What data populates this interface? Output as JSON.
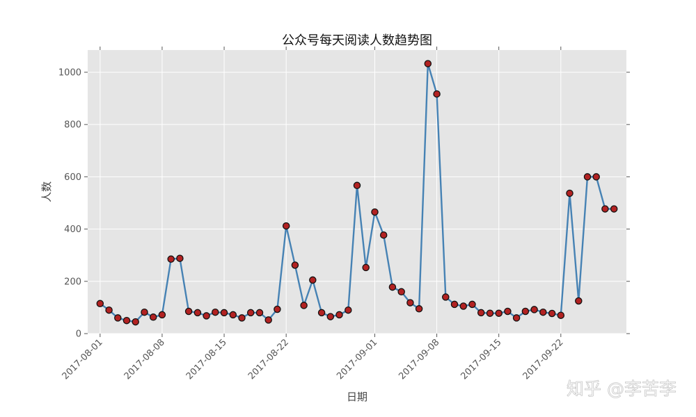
{
  "chart_data": {
    "type": "line",
    "title": "公众号每天阅读人数趋势图",
    "xlabel": "日期",
    "ylabel": "人数",
    "x_start": "2017-08-01",
    "x": [
      "2017-08-01",
      "2017-08-02",
      "2017-08-03",
      "2017-08-04",
      "2017-08-05",
      "2017-08-06",
      "2017-08-07",
      "2017-08-08",
      "2017-08-09",
      "2017-08-10",
      "2017-08-11",
      "2017-08-12",
      "2017-08-13",
      "2017-08-14",
      "2017-08-15",
      "2017-08-16",
      "2017-08-17",
      "2017-08-18",
      "2017-08-19",
      "2017-08-20",
      "2017-08-21",
      "2017-08-22",
      "2017-08-23",
      "2017-08-24",
      "2017-08-25",
      "2017-08-26",
      "2017-08-27",
      "2017-08-28",
      "2017-08-29",
      "2017-08-30",
      "2017-08-31",
      "2017-09-01",
      "2017-09-02",
      "2017-09-03",
      "2017-09-04",
      "2017-09-05",
      "2017-09-06",
      "2017-09-07",
      "2017-09-08",
      "2017-09-09",
      "2017-09-10",
      "2017-09-11",
      "2017-09-12",
      "2017-09-13",
      "2017-09-14",
      "2017-09-15",
      "2017-09-16",
      "2017-09-17",
      "2017-09-18",
      "2017-09-19",
      "2017-09-20",
      "2017-09-21",
      "2017-09-22",
      "2017-09-23",
      "2017-09-24",
      "2017-09-25",
      "2017-09-26",
      "2017-09-27",
      "2017-09-28"
    ],
    "values": [
      115,
      90,
      60,
      50,
      45,
      82,
      63,
      72,
      285,
      288,
      85,
      80,
      68,
      82,
      80,
      72,
      60,
      80,
      80,
      52,
      93,
      412,
      262,
      108,
      205,
      80,
      65,
      72,
      90,
      567,
      253,
      465,
      377,
      178,
      160,
      118,
      95,
      1033,
      917,
      140,
      112,
      105,
      112,
      80,
      78,
      78,
      85,
      60,
      85,
      92,
      82,
      77,
      70,
      537,
      125,
      600,
      600,
      477,
      477
    ],
    "xticks": [
      "2017-08-01",
      "2017-08-08",
      "2017-08-15",
      "2017-08-22",
      "2017-09-01",
      "2017-09-08",
      "2017-09-15",
      "2017-09-22"
    ],
    "yticks": [
      0,
      200,
      400,
      600,
      800,
      1000
    ],
    "ylim": [
      0,
      1085
    ],
    "grid": true,
    "line_color": "#4682b4",
    "marker_color": "#b22222",
    "background": "#e5e5e5"
  },
  "watermark": "知乎 @李苦李"
}
